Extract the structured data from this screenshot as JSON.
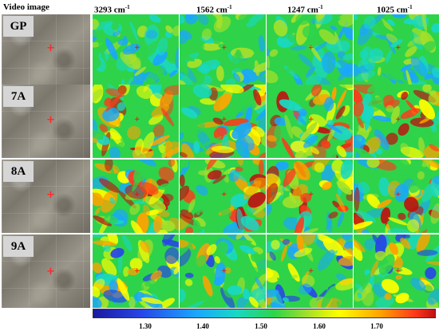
{
  "headers": {
    "video": "Video image",
    "bands": [
      {
        "value": "3293 cm",
        "sup": "-1"
      },
      {
        "value": "1562 cm",
        "sup": "-1"
      },
      {
        "value": "1247 cm",
        "sup": "-1"
      },
      {
        "value": "1025 cm",
        "sup": "-1"
      }
    ]
  },
  "rows": [
    {
      "label": "GP"
    },
    {
      "label": "7A"
    },
    {
      "label": "8A"
    },
    {
      "label": "9A"
    }
  ],
  "colorbar": {
    "ticks": [
      "1.30",
      "1.40",
      "1.50",
      "1.60",
      "1.70"
    ],
    "colors": [
      "#1a1aa0",
      "#2746e6",
      "#1aa6ff",
      "#19d8c4",
      "#2ed34a",
      "#a8e02a",
      "#ffff00",
      "#ffa200",
      "#ff3a1a",
      "#c01010"
    ]
  }
}
